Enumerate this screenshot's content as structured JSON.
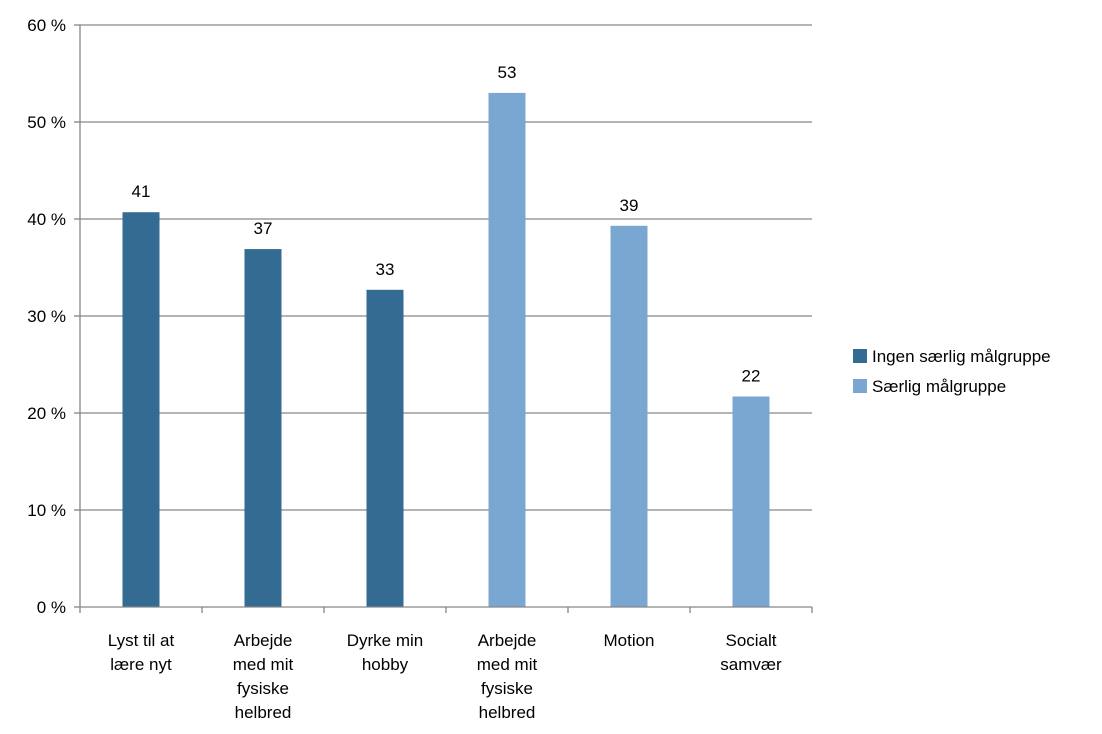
{
  "chart_data": {
    "type": "bar",
    "categories": [
      [
        "Lyst til at",
        "lære nyt"
      ],
      [
        "Arbejde",
        "med mit",
        "fysiske",
        "helbred"
      ],
      [
        "Dyrke min",
        "hobby"
      ],
      [
        "Arbejde",
        "med mit",
        "fysiske",
        "helbred"
      ],
      [
        "Motion"
      ],
      [
        "Socialt",
        "samvær"
      ]
    ],
    "series": [
      {
        "name": "Ingen særlig målgruppe",
        "color": "#336b93",
        "values": [
          40.7,
          36.9,
          32.7,
          null,
          null,
          null
        ],
        "labels": [
          "41",
          "37",
          "33",
          "",
          "",
          ""
        ]
      },
      {
        "name": "Særlig målgruppe",
        "color": "#7aa7d1",
        "values": [
          null,
          null,
          null,
          53.0,
          39.3,
          21.7
        ],
        "labels": [
          "",
          "",
          "",
          "53",
          "39",
          "22"
        ]
      }
    ],
    "y_ticks": [
      "0 %",
      "10 %",
      "20 %",
      "30 %",
      "40 %",
      "50 %",
      "60 %"
    ],
    "ylim": [
      0,
      60
    ],
    "grid": true,
    "legend_position": "right"
  }
}
